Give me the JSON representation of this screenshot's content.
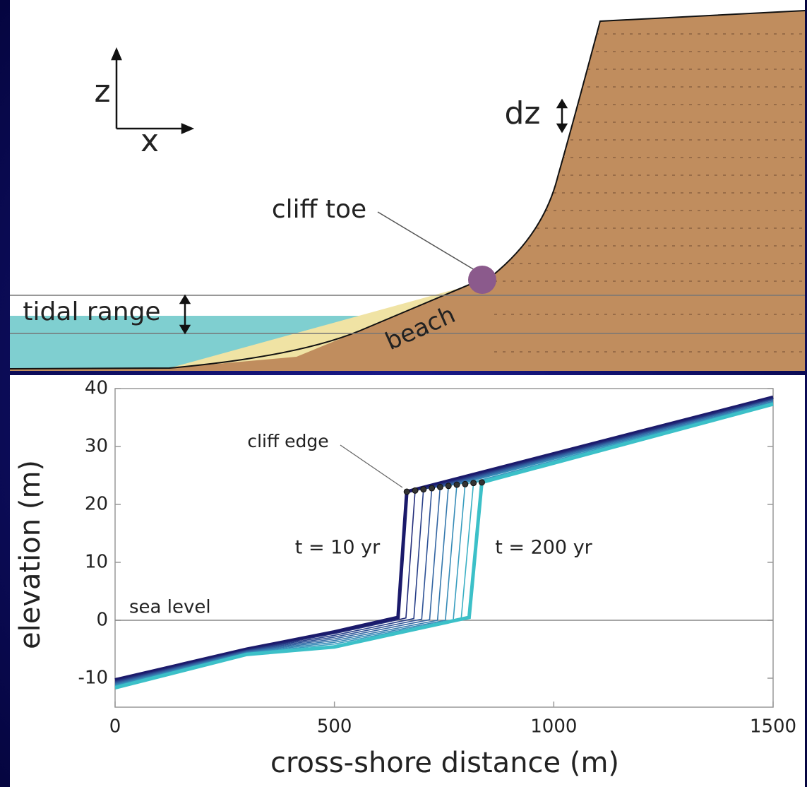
{
  "diagram": {
    "axis_z": "z",
    "axis_x": "x",
    "dz": "dz",
    "cliff_toe": "cliff toe",
    "tidal_range": "tidal range",
    "beach": "beach"
  },
  "chart_data": {
    "type": "line",
    "x_label": "cross-shore distance (m)",
    "y_label": "elevation (m)",
    "xlim": [
      0,
      1500
    ],
    "ylim": [
      -15,
      40
    ],
    "xticks": [
      0,
      500,
      1000,
      1500
    ],
    "yticks": [
      -10,
      0,
      10,
      20,
      30,
      40
    ],
    "sea_level": {
      "value": 0,
      "label": "sea level"
    },
    "annotations": [
      "cliff edge",
      "t = 10 yr",
      "t = 200 yr"
    ],
    "series": [
      {
        "color": "#1b1a6b",
        "x": [
          0,
          300,
          500,
          645,
          665,
          1500
        ],
        "values": [
          -10.3,
          -5.0,
          -2.0,
          0.5,
          22.2,
          38.5
        ]
      },
      {
        "color": "#222c7a",
        "x": [
          0,
          300,
          500,
          663,
          684,
          1500
        ],
        "values": [
          -10.45,
          -5.1,
          -2.3,
          0.4,
          22.4,
          38.4
        ]
      },
      {
        "color": "#283f88",
        "x": [
          0,
          300,
          500,
          681,
          703,
          1500
        ],
        "values": [
          -10.6,
          -5.2,
          -2.6,
          0.3,
          22.6,
          38.2
        ]
      },
      {
        "color": "#2e5296",
        "x": [
          0,
          300,
          500,
          699,
          722,
          1500
        ],
        "values": [
          -10.75,
          -5.3,
          -2.9,
          0.2,
          22.8,
          38.1
        ]
      },
      {
        "color": "#3365a2",
        "x": [
          0,
          300,
          500,
          717,
          741,
          1500
        ],
        "values": [
          -10.9,
          -5.4,
          -3.2,
          0.1,
          23.0,
          38.0
        ]
      },
      {
        "color": "#3478ad",
        "x": [
          0,
          300,
          500,
          735,
          760,
          1500
        ],
        "values": [
          -11.05,
          -5.5,
          -3.5,
          0.0,
          23.2,
          37.8
        ]
      },
      {
        "color": "#368bb7",
        "x": [
          0,
          300,
          500,
          753,
          779,
          1500
        ],
        "values": [
          -11.2,
          -5.6,
          -3.8,
          0.0,
          23.4,
          37.7
        ]
      },
      {
        "color": "#389dbf",
        "x": [
          0,
          300,
          500,
          771,
          798,
          1500
        ],
        "values": [
          -11.35,
          -5.7,
          -4.1,
          0.1,
          23.5,
          37.6
        ]
      },
      {
        "color": "#3aafc4",
        "x": [
          0,
          300,
          500,
          789,
          817,
          1500
        ],
        "values": [
          -11.5,
          -5.8,
          -4.4,
          0.3,
          23.7,
          37.4
        ]
      },
      {
        "color": "#3cc0c8",
        "x": [
          0,
          300,
          500,
          807,
          836,
          1500
        ],
        "values": [
          -11.65,
          -5.9,
          -4.6,
          0.5,
          23.8,
          37.3
        ]
      }
    ]
  }
}
